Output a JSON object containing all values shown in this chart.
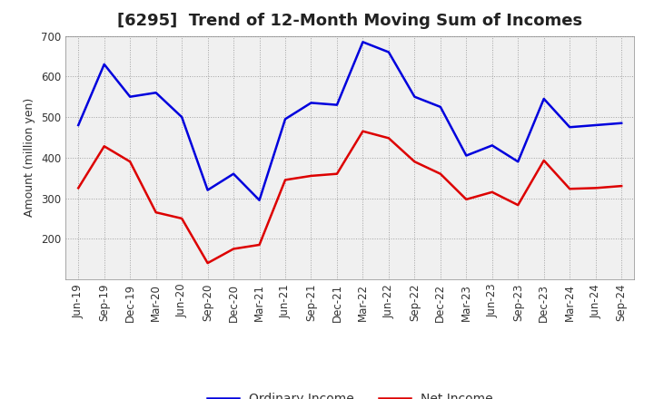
{
  "title": "[6295]  Trend of 12-Month Moving Sum of Incomes",
  "ylabel": "Amount (million yen)",
  "x_labels": [
    "Jun-19",
    "Sep-19",
    "Dec-19",
    "Mar-20",
    "Jun-20",
    "Sep-20",
    "Dec-20",
    "Mar-21",
    "Jun-21",
    "Sep-21",
    "Dec-21",
    "Mar-22",
    "Jun-22",
    "Sep-22",
    "Dec-22",
    "Mar-23",
    "Jun-23",
    "Sep-23",
    "Dec-23",
    "Mar-24",
    "Jun-24",
    "Sep-24"
  ],
  "ordinary_income": [
    480,
    630,
    550,
    560,
    500,
    320,
    360,
    295,
    495,
    535,
    530,
    685,
    660,
    550,
    525,
    405,
    430,
    390,
    545,
    475,
    480,
    485
  ],
  "net_income": [
    325,
    428,
    390,
    265,
    250,
    140,
    175,
    185,
    345,
    355,
    360,
    465,
    448,
    390,
    360,
    297,
    315,
    283,
    393,
    323,
    325,
    330
  ],
  "ordinary_color": "#0000dd",
  "net_color": "#dd0000",
  "ylim_min": 100,
  "ylim_max": 700,
  "yticks": [
    200,
    300,
    400,
    500,
    600,
    700
  ],
  "background_color": "#ffffff",
  "plot_bg_color": "#f0f0f0",
  "grid_color": "#999999",
  "title_fontsize": 13,
  "axis_label_fontsize": 9,
  "tick_fontsize": 8.5,
  "legend_fontsize": 10,
  "line_width": 1.8
}
